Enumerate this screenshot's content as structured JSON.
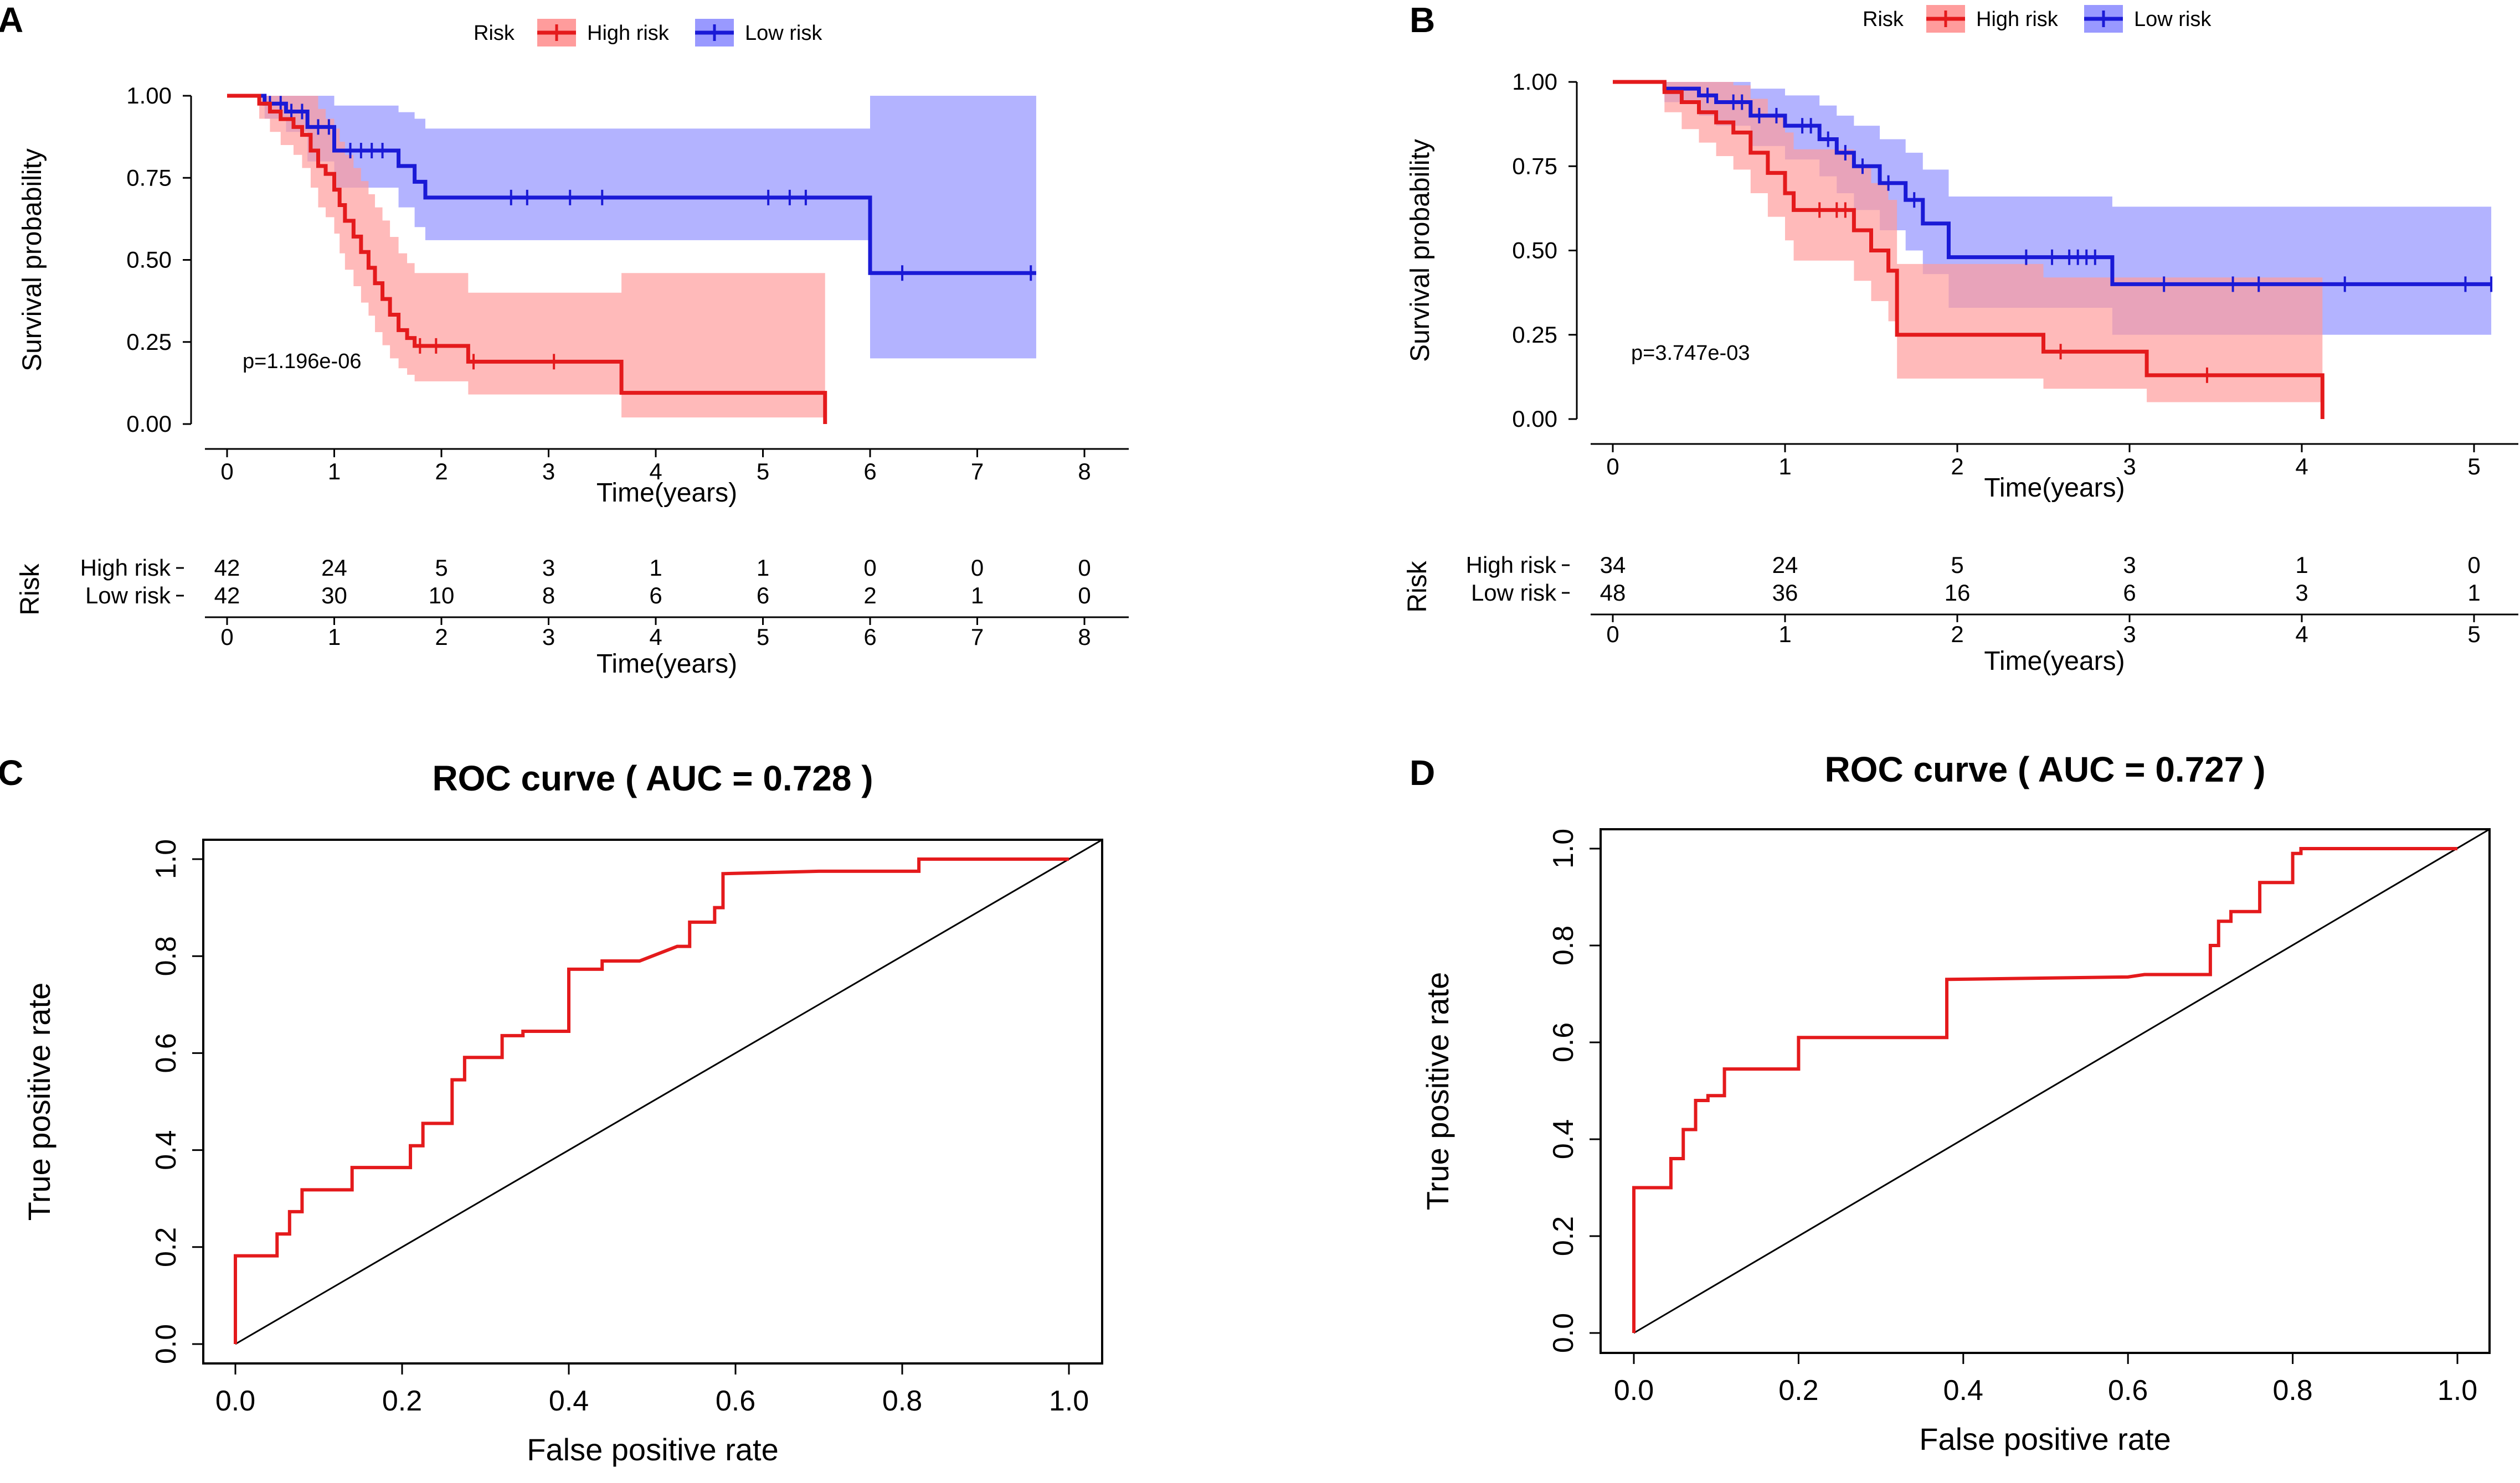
{
  "chart_data": [
    {
      "panel": "A",
      "type": "line",
      "subtype": "kaplan-meier",
      "title": "",
      "legend": {
        "title": "Risk",
        "entries": [
          "High risk",
          "Low risk"
        ],
        "placement": "top"
      },
      "xlabel": "Time(years)",
      "ylabel": "Survival probability",
      "xlim": [
        0,
        8
      ],
      "ylim": [
        0,
        1
      ],
      "xticks": [
        "0",
        "1",
        "2",
        "3",
        "4",
        "5",
        "6",
        "7",
        "8"
      ],
      "yticks": [
        "0.00",
        "0.25",
        "0.50",
        "0.75",
        "1.00"
      ],
      "pvalue": "p=1.196e-06",
      "series": [
        {
          "name": "High risk",
          "color": "#e41a1c",
          "x": [
            0,
            0.3,
            0.4,
            0.5,
            0.62,
            0.7,
            0.78,
            0.85,
            0.92,
            1.0,
            1.05,
            1.1,
            1.18,
            1.25,
            1.32,
            1.38,
            1.45,
            1.52,
            1.6,
            1.68,
            1.75,
            2.25,
            3.68,
            5.58
          ],
          "y": [
            1,
            0.976,
            0.952,
            0.929,
            0.905,
            0.881,
            0.833,
            0.786,
            0.762,
            0.714,
            0.667,
            0.619,
            0.571,
            0.524,
            0.476,
            0.429,
            0.381,
            0.333,
            0.286,
            0.262,
            0.238,
            0.19,
            0.095,
            0
          ],
          "ci_upper": [
            1,
            1,
            1,
            1,
            1,
            1,
            1,
            0.96,
            0.93,
            0.9,
            0.86,
            0.82,
            0.78,
            0.74,
            0.7,
            0.66,
            0.62,
            0.57,
            0.52,
            0.49,
            0.46,
            0.4,
            0.46,
            0.46
          ],
          "ci_lower": [
            1,
            0.93,
            0.89,
            0.85,
            0.82,
            0.78,
            0.72,
            0.66,
            0.63,
            0.58,
            0.52,
            0.47,
            0.42,
            0.37,
            0.33,
            0.28,
            0.24,
            0.2,
            0.17,
            0.15,
            0.13,
            0.09,
            0.02,
            0.02
          ],
          "censor_x": [
            1.8,
            1.95,
            2.3,
            3.05
          ],
          "at_risk": [
            "42",
            "24",
            "5",
            "3",
            "1",
            "1",
            "0",
            "0",
            "0"
          ]
        },
        {
          "name": "Low risk",
          "color": "#1a1ad6",
          "x": [
            0,
            0.35,
            0.55,
            0.75,
            1.0,
            1.6,
            1.75,
            1.85,
            6.0,
            7.55
          ],
          "y": [
            1,
            0.976,
            0.952,
            0.905,
            0.833,
            0.786,
            0.738,
            0.69,
            0.46,
            0.46
          ],
          "ci_upper": [
            1,
            1,
            1,
            1,
            0.97,
            0.95,
            0.93,
            0.9,
            1,
            1
          ],
          "ci_lower": [
            1,
            0.93,
            0.89,
            0.8,
            0.72,
            0.66,
            0.6,
            0.56,
            0.2,
            0.2
          ],
          "censor_x": [
            0.4,
            0.5,
            0.6,
            0.7,
            0.85,
            0.95,
            1.15,
            1.25,
            1.35,
            1.45,
            2.65,
            2.8,
            3.2,
            3.5,
            5.05,
            5.25,
            5.4,
            6.3,
            7.5
          ],
          "at_risk": [
            "42",
            "30",
            "10",
            "8",
            "6",
            "6",
            "2",
            "1",
            "0"
          ]
        }
      ],
      "risk_table": {
        "title": "Risk",
        "xlabel": "Time(years)",
        "xticks": [
          "0",
          "1",
          "2",
          "3",
          "4",
          "5",
          "6",
          "7",
          "8"
        ]
      }
    },
    {
      "panel": "B",
      "type": "line",
      "subtype": "kaplan-meier",
      "title": "",
      "legend": {
        "title": "Risk",
        "entries": [
          "High risk",
          "Low risk"
        ],
        "placement": "top"
      },
      "xlabel": "Time(years)",
      "ylabel": "Survival probability",
      "xlim": [
        0,
        5
      ],
      "ylim": [
        0,
        1
      ],
      "xticks": [
        "0",
        "1",
        "2",
        "3",
        "4",
        "5"
      ],
      "yticks": [
        "0.00",
        "0.25",
        "0.50",
        "0.75",
        "1.00"
      ],
      "pvalue": "p=3.747e-03",
      "series": [
        {
          "name": "High risk",
          "color": "#e41a1c",
          "x": [
            0,
            0.3,
            0.4,
            0.5,
            0.6,
            0.7,
            0.8,
            0.9,
            1.0,
            1.05,
            1.4,
            1.5,
            1.6,
            1.65,
            2.5,
            3.1,
            4.12
          ],
          "y": [
            1,
            0.97,
            0.94,
            0.91,
            0.88,
            0.85,
            0.79,
            0.73,
            0.67,
            0.62,
            0.56,
            0.5,
            0.44,
            0.25,
            0.2,
            0.13,
            0
          ],
          "ci_upper": [
            1,
            1,
            1,
            1,
            1,
            0.99,
            0.95,
            0.9,
            0.85,
            0.8,
            0.75,
            0.7,
            0.65,
            0.46,
            0.42,
            0.42,
            0.42
          ],
          "ci_lower": [
            1,
            0.91,
            0.86,
            0.82,
            0.78,
            0.74,
            0.67,
            0.6,
            0.53,
            0.47,
            0.41,
            0.35,
            0.29,
            0.12,
            0.09,
            0.05,
            0.05
          ],
          "censor_x": [
            1.2,
            1.3,
            1.35,
            2.6,
            3.45
          ],
          "at_risk": [
            "34",
            "24",
            "5",
            "3",
            "1",
            "0"
          ]
        },
        {
          "name": "Low risk",
          "color": "#1a1ad6",
          "x": [
            0,
            0.3,
            0.5,
            0.6,
            0.8,
            1.0,
            1.2,
            1.3,
            1.4,
            1.55,
            1.7,
            1.8,
            1.95,
            2.9,
            5.1
          ],
          "y": [
            1,
            0.98,
            0.96,
            0.94,
            0.9,
            0.87,
            0.83,
            0.79,
            0.75,
            0.7,
            0.65,
            0.58,
            0.48,
            0.4,
            0.4
          ],
          "ci_upper": [
            1,
            1,
            1,
            1,
            0.98,
            0.96,
            0.93,
            0.9,
            0.87,
            0.83,
            0.79,
            0.74,
            0.66,
            0.63,
            0.63
          ],
          "ci_lower": [
            1,
            0.94,
            0.9,
            0.87,
            0.81,
            0.77,
            0.72,
            0.67,
            0.62,
            0.56,
            0.5,
            0.43,
            0.33,
            0.25,
            0.25
          ],
          "censor_x": [
            0.55,
            0.7,
            0.75,
            0.85,
            0.95,
            1.1,
            1.15,
            1.25,
            1.35,
            1.45,
            1.6,
            1.75,
            2.4,
            2.55,
            2.65,
            2.7,
            2.75,
            2.8,
            3.2,
            3.6,
            3.75,
            4.25,
            4.95,
            5.1
          ],
          "at_risk": [
            "48",
            "36",
            "16",
            "6",
            "3",
            "1"
          ]
        }
      ],
      "risk_table": {
        "title": "Risk",
        "xlabel": "Time(years)",
        "xticks": [
          "0",
          "1",
          "2",
          "3",
          "4",
          "5"
        ]
      }
    },
    {
      "panel": "C",
      "type": "line",
      "subtype": "roc",
      "title": "ROC curve ( AUC =  0.728 )",
      "xlabel": "False positive rate",
      "ylabel": "True positive rate",
      "xlim": [
        0,
        1
      ],
      "ylim": [
        0,
        1
      ],
      "xticks": [
        "0.0",
        "0.2",
        "0.4",
        "0.6",
        "0.8",
        "1.0"
      ],
      "yticks": [
        "0.0",
        "0.2",
        "0.4",
        "0.6",
        "0.8",
        "1.0"
      ],
      "series": [
        {
          "name": "ROC",
          "color": "#e41a1c",
          "x": [
            0,
            0,
            0.05,
            0.05,
            0.065,
            0.065,
            0.08,
            0.08,
            0.14,
            0.14,
            0.21,
            0.21,
            0.225,
            0.225,
            0.26,
            0.26,
            0.275,
            0.275,
            0.32,
            0.32,
            0.345,
            0.345,
            0.4,
            0.4,
            0.44,
            0.44,
            0.485,
            0.5,
            0.53,
            0.545,
            0.545,
            0.575,
            0.575,
            0.585,
            0.585,
            0.7,
            0.82,
            0.82,
            0.9,
            1.0
          ],
          "y": [
            0,
            0.182,
            0.182,
            0.227,
            0.227,
            0.273,
            0.273,
            0.318,
            0.318,
            0.364,
            0.364,
            0.409,
            0.409,
            0.455,
            0.455,
            0.545,
            0.545,
            0.591,
            0.591,
            0.636,
            0.636,
            0.645,
            0.645,
            0.773,
            0.773,
            0.79,
            0.79,
            0.8,
            0.82,
            0.82,
            0.87,
            0.87,
            0.9,
            0.9,
            0.97,
            0.975,
            0.975,
            1.0,
            1.0,
            1.0
          ]
        },
        {
          "name": "Reference",
          "color": "#000000",
          "x": [
            0,
            1
          ],
          "y": [
            0,
            1
          ]
        }
      ]
    },
    {
      "panel": "D",
      "type": "line",
      "subtype": "roc",
      "title": "ROC curve ( AUC =  0.727 )",
      "xlabel": "False positive rate",
      "ylabel": "True positive rate",
      "xlim": [
        0,
        1
      ],
      "ylim": [
        0,
        1
      ],
      "xticks": [
        "0.0",
        "0.2",
        "0.4",
        "0.6",
        "0.8",
        "1.0"
      ],
      "yticks": [
        "0.0",
        "0.2",
        "0.4",
        "0.6",
        "0.8",
        "1.0"
      ],
      "series": [
        {
          "name": "ROC",
          "color": "#e41a1c",
          "x": [
            0,
            0,
            0.045,
            0.045,
            0.06,
            0.06,
            0.075,
            0.075,
            0.09,
            0.09,
            0.11,
            0.11,
            0.2,
            0.2,
            0.38,
            0.38,
            0.6,
            0.62,
            0.7,
            0.7,
            0.71,
            0.71,
            0.725,
            0.725,
            0.76,
            0.76,
            0.8,
            0.8,
            0.81,
            0.81,
            0.85,
            1.0
          ],
          "y": [
            0,
            0.3,
            0.3,
            0.36,
            0.36,
            0.42,
            0.42,
            0.48,
            0.48,
            0.49,
            0.49,
            0.545,
            0.545,
            0.61,
            0.61,
            0.73,
            0.735,
            0.74,
            0.74,
            0.8,
            0.8,
            0.85,
            0.85,
            0.87,
            0.87,
            0.93,
            0.93,
            0.99,
            0.99,
            1.0,
            1.0,
            1.0
          ]
        },
        {
          "name": "Reference",
          "color": "#000000",
          "x": [
            0,
            1
          ],
          "y": [
            0,
            1
          ]
        }
      ]
    }
  ]
}
